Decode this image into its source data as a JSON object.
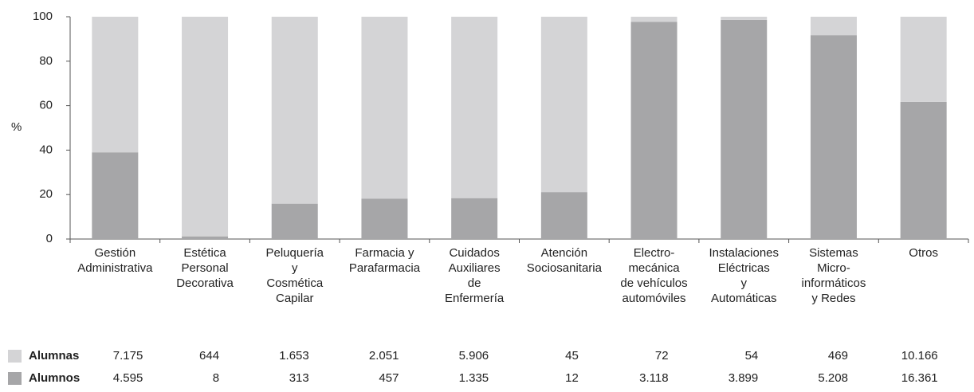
{
  "chart_data": {
    "type": "stacked_bar_100",
    "y_label": "%",
    "categories": [
      "Gestión\nAdministrativa",
      "Estética\nPersonal\nDecorativa",
      "Peluquería\ny\nCosmética\nCapilar",
      "Farmacia y\nParafarmacia",
      "Cuidados\nAuxiliares\nde\nEnfermería",
      "Atención\nSociosanitaria",
      "Electro-\nmecánica\nde vehículos\nautomóviles",
      "Instalaciones\nEléctricas\ny\nAutomáticas",
      "Sistemas\nMicro-\ninformáticos\ny Redes",
      "Otros"
    ],
    "series": [
      {
        "name": "Alumnas",
        "color": "#d4d4d6",
        "values": [
          61,
          98.8,
          84.1,
          81.8,
          81.6,
          78.9,
          2.3,
          1.4,
          8.3,
          38.3
        ]
      },
      {
        "name": "Alumnos",
        "color": "#a6a6a8",
        "values": [
          39,
          1.2,
          15.9,
          18.2,
          18.4,
          21.1,
          97.7,
          98.6,
          91.7,
          61.7
        ]
      }
    ],
    "ylim": [
      0,
      100
    ],
    "yticks": [
      0,
      20,
      40,
      60,
      80,
      100
    ],
    "table": [
      [
        "7.175",
        "644",
        "1.653",
        "2.051",
        "5.906",
        "45",
        "72",
        "54",
        "469",
        "10.166"
      ],
      [
        "4.595",
        "8",
        "313",
        "457",
        "1.335",
        "12",
        "3.118",
        "3.899",
        "5.208",
        "16.361"
      ]
    ]
  }
}
